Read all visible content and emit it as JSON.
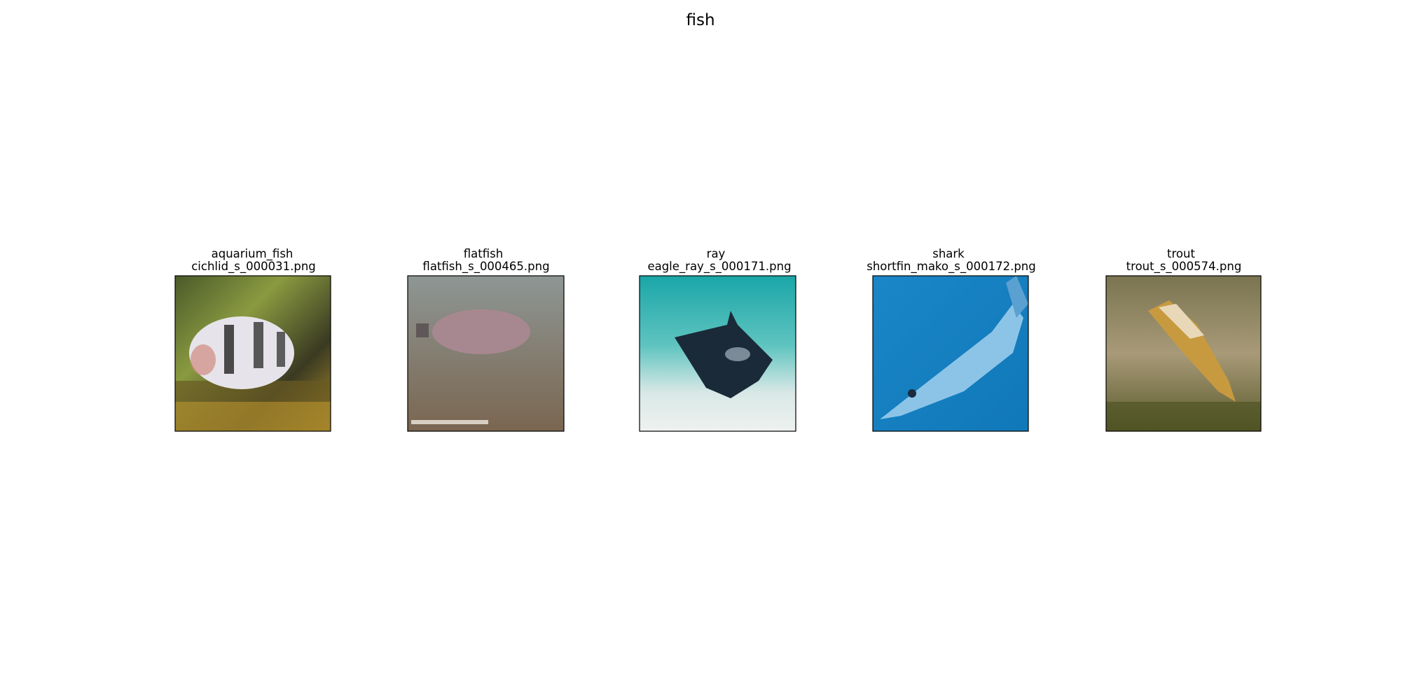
{
  "title": "fish",
  "panels": [
    {
      "label": "aquarium_fish",
      "file": "cichlid_s_000031.png"
    },
    {
      "label": "flatfish",
      "file": "flatfish_s_000465.png"
    },
    {
      "label": "ray",
      "file": "eagle_ray_s_000171.png"
    },
    {
      "label": "shark",
      "file": "shortfin_mako_s_000172.png"
    },
    {
      "label": "trout",
      "file": "trout_s_000574.png"
    }
  ]
}
